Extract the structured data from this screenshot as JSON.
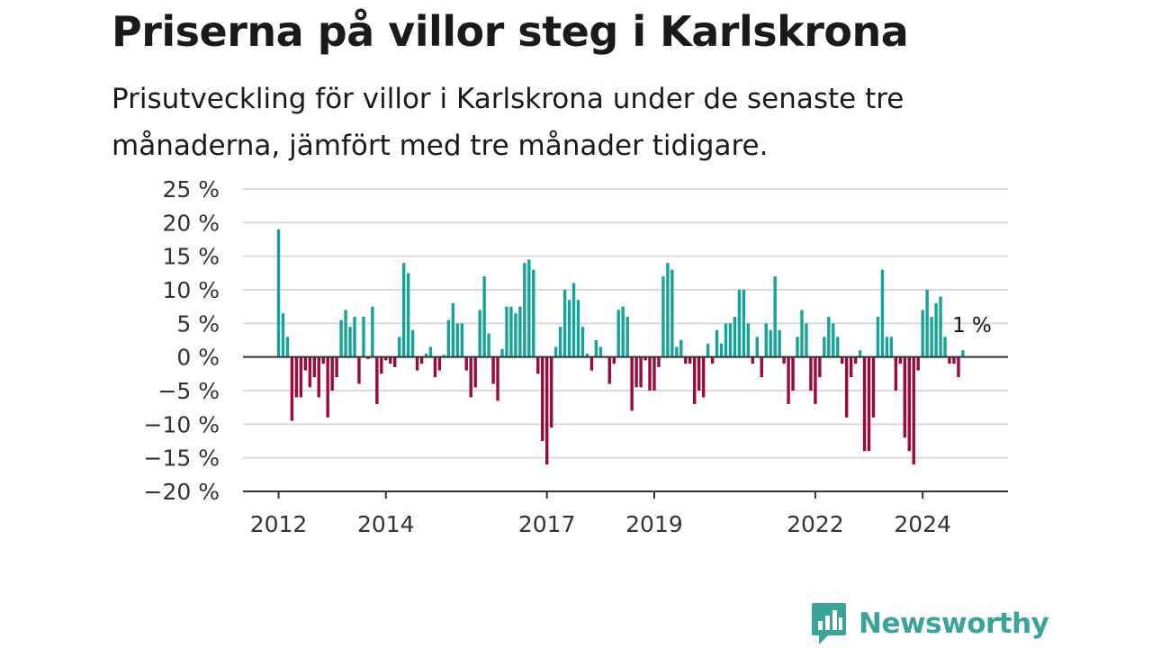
{
  "header": {
    "title": "Priserna på villor steg i Karlskrona",
    "subtitle": "Prisutveckling för villor i Karlskrona under de senaste tre månaderna, jämfört med tre månader tidigare."
  },
  "brand": {
    "name": "Newsworthy",
    "icon": "newsworthy-chart-logo-icon",
    "color": "#3aa39a"
  },
  "colors": {
    "positive": "#17a399",
    "negative": "#9a0a3c",
    "grid": "#d9d9d9",
    "axis": "#333333"
  },
  "chart_data": {
    "type": "bar",
    "start": "2012-01",
    "frequency": "monthly",
    "unit": "%",
    "ylim": [
      -20,
      25
    ],
    "yticks": [
      25,
      20,
      15,
      10,
      5,
      0,
      -5,
      -10,
      -15,
      -20
    ],
    "ytick_labels": [
      "25 %",
      "20 %",
      "15 %",
      "10 %",
      "5 %",
      "0 %",
      "−5 %",
      "−10 %",
      "−15 %",
      "−20 %"
    ],
    "xticks": [
      "2012",
      "2014",
      "2017",
      "2019",
      "2022",
      "2024"
    ],
    "grid": true,
    "last_label": "1 %",
    "values": [
      19,
      6.5,
      3,
      -9.5,
      -6,
      -6,
      -2,
      -4.5,
      -3,
      -6,
      -1,
      -9,
      -5,
      -3,
      5.5,
      7,
      4.5,
      6,
      -4,
      6,
      -0.3,
      7.5,
      -7,
      -2.5,
      -0.5,
      -1,
      -1.5,
      3,
      14,
      12.5,
      4,
      -2,
      -1,
      0.5,
      1.5,
      -3,
      -2,
      0.3,
      5.5,
      8,
      5,
      5,
      -2,
      -6,
      -4.5,
      7,
      12,
      3.5,
      -4,
      -6.5,
      1.2,
      7.5,
      7.5,
      6.5,
      7.5,
      14,
      14.5,
      13,
      -2.5,
      -12.5,
      -16,
      -10.5,
      1.5,
      4.5,
      10,
      8.5,
      11,
      8.5,
      4.5,
      0.5,
      -2,
      2.5,
      1.5,
      0,
      -4,
      -1,
      7,
      7.5,
      6,
      -8,
      -4.5,
      -4.5,
      -0.5,
      -5,
      -5,
      -1.5,
      12,
      14,
      13,
      1.5,
      2.5,
      -1,
      -1,
      -7,
      -5,
      -6,
      2,
      -1,
      4,
      2,
      5,
      5,
      6,
      10,
      10,
      5,
      -1,
      3,
      -3,
      5,
      4,
      12,
      4,
      -1,
      -7,
      -5,
      3,
      7,
      5,
      -5,
      -7,
      -3,
      3,
      6,
      5,
      3,
      -1,
      -9,
      -3,
      -1,
      1,
      -14,
      -14,
      -9,
      6,
      13,
      3,
      3,
      -5,
      -1,
      -12,
      -14,
      -16,
      -2,
      7,
      10,
      6,
      8,
      9,
      3,
      -1,
      -1,
      -3,
      1
    ]
  }
}
